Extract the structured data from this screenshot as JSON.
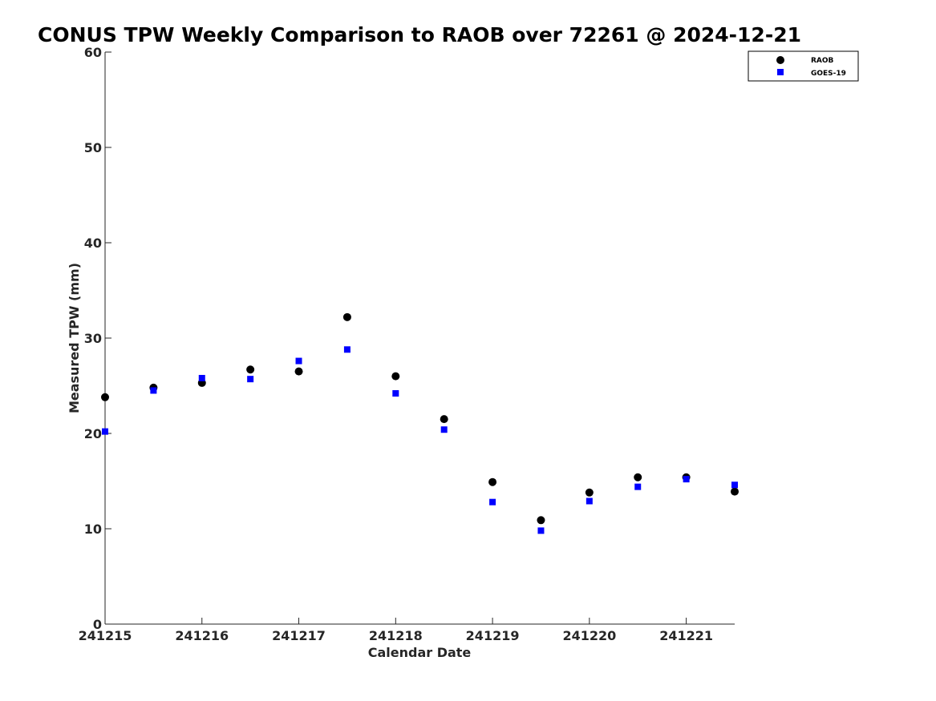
{
  "chart_data": {
    "type": "scatter",
    "title": "CONUS TPW Weekly Comparison to RAOB over 72261 @ 2024-12-21",
    "xlabel": "Calendar Date",
    "ylabel": "Measured TPW (mm)",
    "xlim": [
      0,
      6.5
    ],
    "ylim": [
      0,
      60
    ],
    "x_ticks": [
      0,
      1,
      2,
      3,
      4,
      5,
      6
    ],
    "x_tick_labels": [
      "241215",
      "241216",
      "241217",
      "241218",
      "241219",
      "241220",
      "241221"
    ],
    "y_ticks": [
      0,
      10,
      20,
      30,
      40,
      50,
      60
    ],
    "y_tick_labels": [
      "0",
      "10",
      "20",
      "30",
      "40",
      "50",
      "60"
    ],
    "grid": false,
    "legend_position": "top-right",
    "series": [
      {
        "name": "RAOB",
        "marker": "circle",
        "color": "#000000",
        "x": [
          0,
          0.5,
          1,
          1.5,
          2,
          2.5,
          3,
          3.5,
          4,
          4.5,
          5,
          5.5,
          6,
          6.5
        ],
        "y": [
          23.8,
          24.8,
          25.3,
          26.7,
          26.5,
          32.2,
          26.0,
          21.5,
          14.9,
          10.9,
          13.8,
          15.4,
          15.4,
          13.9
        ]
      },
      {
        "name": "GOES-19",
        "marker": "square",
        "color": "#0000ff",
        "x": [
          0,
          0.5,
          1,
          1.5,
          2,
          2.5,
          3,
          3.5,
          4,
          4.5,
          5,
          5.5,
          6,
          6.5
        ],
        "y": [
          20.2,
          24.5,
          25.8,
          25.7,
          27.6,
          28.8,
          24.2,
          20.4,
          12.8,
          9.8,
          12.9,
          14.4,
          15.2,
          14.6
        ]
      }
    ]
  }
}
